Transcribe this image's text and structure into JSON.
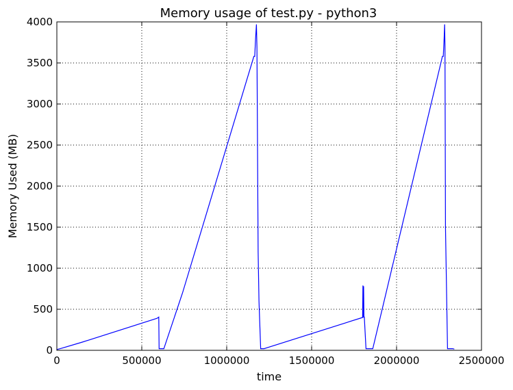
{
  "chart_data": {
    "type": "line",
    "title": "Memory usage of test.py - python3",
    "xlabel": "time",
    "ylabel": "Memory Used (MB)",
    "xlim": [
      0,
      2500000
    ],
    "ylim": [
      0,
      4000
    ],
    "xticks": [
      0,
      500000,
      1000000,
      1500000,
      2000000,
      2500000
    ],
    "xtick_labels": [
      "0",
      "500000",
      "1000000",
      "1500000",
      "2000000",
      "2500000"
    ],
    "yticks": [
      0,
      500,
      1000,
      1500,
      2000,
      2500,
      3000,
      3500,
      4000
    ],
    "ytick_labels": [
      "0",
      "500",
      "1000",
      "1500",
      "2000",
      "2500",
      "3000",
      "3500",
      "4000"
    ],
    "grid": true,
    "line_color": "#0000ff",
    "series": [
      {
        "x": [
          0,
          20000,
          150000,
          590000,
          600000,
          602000,
          630000,
          740000,
          1160000,
          1165000,
          1170000,
          1175000,
          1178000,
          1185000,
          1190000,
          1200000,
          1220000,
          1800000,
          1802000,
          1804000,
          1806000,
          1808000,
          1810000,
          1820000,
          1845000,
          1860000,
          2270000,
          2275000,
          2280000,
          2283000,
          2285000,
          2288000,
          2300000,
          2330000,
          2340000
        ],
        "y": [
          10,
          20,
          100,
          390,
          405,
          20,
          20,
          700,
          3580,
          3580,
          3800,
          3970,
          3700,
          1200,
          600,
          20,
          20,
          400,
          790,
          400,
          780,
          400,
          410,
          20,
          20,
          20,
          3580,
          3580,
          3800,
          3970,
          3700,
          1500,
          20,
          20,
          15
        ]
      }
    ]
  }
}
